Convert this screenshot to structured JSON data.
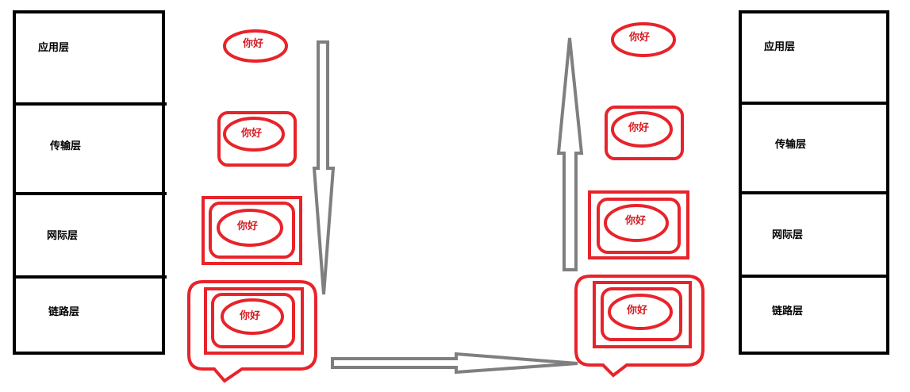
{
  "left_stack": {
    "layers": [
      {
        "label": "应用层"
      },
      {
        "label": "传输层"
      },
      {
        "label": "网际层"
      },
      {
        "label": "链路层"
      }
    ]
  },
  "right_stack": {
    "layers": [
      {
        "label": "应用层"
      },
      {
        "label": "传输层"
      },
      {
        "label": "网际层"
      },
      {
        "label": "链路层"
      }
    ]
  },
  "packets": {
    "left": [
      {
        "text": "你好"
      },
      {
        "text": "你好"
      },
      {
        "text": "你好"
      },
      {
        "text": "你好"
      }
    ],
    "right": [
      {
        "text": "你好"
      },
      {
        "text": "你好"
      },
      {
        "text": "你好"
      },
      {
        "text": "你好"
      }
    ]
  },
  "colors": {
    "wrapper": "#e8232a",
    "text_red": "#d41a1f",
    "arrow_stroke": "#7f7f7f",
    "box_border": "#000000"
  }
}
